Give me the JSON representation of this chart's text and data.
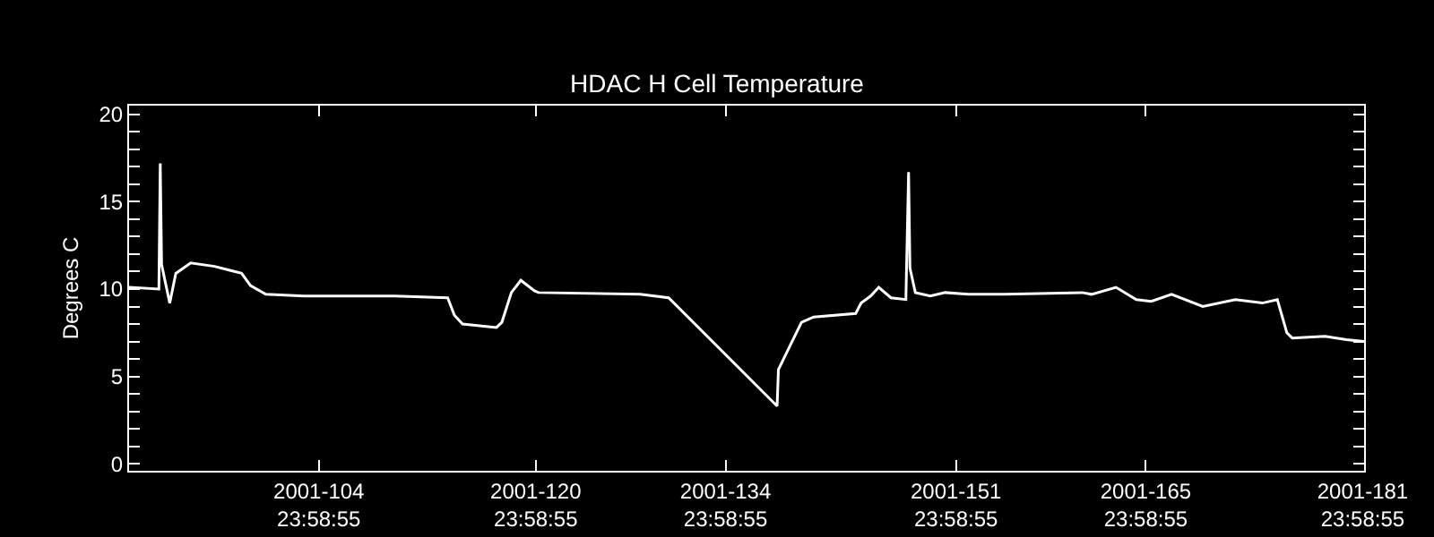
{
  "chart_data": {
    "type": "line",
    "title": "HDAC H Cell Temperature",
    "ylabel": "Degrees C",
    "xlim": [
      "2001-04-01",
      "2001-07-01T02:24"
    ],
    "ylim": [
      -0.4,
      20.5
    ],
    "xticks": [
      {
        "value": "2001-04-14T23:59",
        "label": "2001-104\n23:58:55"
      },
      {
        "value": "2001-04-30T23:59",
        "label": "2001-120\n23:58:55"
      },
      {
        "value": "2001-05-14T23:59",
        "label": "2001-134\n23:58:55"
      },
      {
        "value": "2001-05-31T23:59",
        "label": "2001-151\n23:58:55"
      },
      {
        "value": "2001-06-14T23:59",
        "label": "2001-165\n23:58:55"
      },
      {
        "value": "2001-06-30T23:59",
        "label": "2001-181\n23:58:55"
      }
    ],
    "yticks": [
      0,
      {
        "value": 1,
        "label": null
      },
      {
        "value": 2,
        "label": null
      },
      {
        "value": 3,
        "label": null
      },
      {
        "value": 4,
        "label": null
      },
      5,
      {
        "value": 6,
        "label": null
      },
      {
        "value": 7,
        "label": null
      },
      {
        "value": 8,
        "label": null
      },
      {
        "value": 9,
        "label": null
      },
      10,
      {
        "value": 11,
        "label": null
      },
      {
        "value": 12,
        "label": null
      },
      {
        "value": 13,
        "label": null
      },
      {
        "value": 14,
        "label": null
      },
      15,
      {
        "value": 16,
        "label": null
      },
      {
        "value": 17,
        "label": null
      },
      {
        "value": 18,
        "label": null
      },
      {
        "value": 19,
        "label": null
      },
      20
    ],
    "grid": false,
    "marker": "none",
    "line_style": "solid",
    "series": [
      {
        "color": "#ffffff",
        "x": [
          "2001-04-01T00:00",
          "2001-04-03T04:48",
          "2001-04-03T07:12",
          "2001-04-03T09:36",
          "2001-04-04T00:00",
          "2001-04-04T10:48",
          "2001-04-05T13:12",
          "2001-04-07T07:12",
          "2001-04-09T07:12",
          "2001-04-09T23:00",
          "2001-04-11T02:00",
          "2001-04-13T21:36",
          "2001-04-20T14:24",
          "2001-04-24T12:00",
          "2001-04-25T00:00",
          "2001-04-25T14:24",
          "2001-04-28T02:24",
          "2001-04-28T12:00",
          "2001-04-29T04:48",
          "2001-04-29T21:36",
          "2001-04-30T21:36",
          "2001-05-01T04:48",
          "2001-05-08T16:48",
          "2001-05-10T19:12",
          "2001-05-18T19:12",
          "2001-05-18T21:36",
          "2001-05-20T14:24",
          "2001-05-21T12:00",
          "2001-05-24T14:24",
          "2001-05-25T00:00",
          "2001-05-25T16:48",
          "2001-05-26T07:12",
          "2001-05-27T04:48",
          "2001-05-28T07:12",
          "2001-05-28T12:00",
          "2001-05-28T14:24",
          "2001-05-29T00:00",
          "2001-05-30T02:24",
          "2001-05-31T04:48",
          "2001-06-01T21:36",
          "2001-06-04T14:24",
          "2001-06-10T07:12",
          "2001-06-11T00:00",
          "2001-06-12T19:12",
          "2001-06-14T07:12",
          "2001-06-15T09:36",
          "2001-06-16T21:36",
          "2001-06-19T04:48",
          "2001-06-21T14:24",
          "2001-06-23T14:24",
          "2001-06-24T16:48",
          "2001-06-25T09:36",
          "2001-06-25T19:12",
          "2001-06-28T04:48",
          "2001-06-29T19:12",
          "2001-07-01T02:24"
        ],
        "values": [
          10.1,
          10.0,
          17.2,
          11.4,
          9.2,
          10.9,
          11.5,
          11.3,
          10.9,
          10.2,
          9.7,
          9.6,
          9.6,
          9.5,
          8.5,
          8.0,
          7.8,
          8.1,
          9.8,
          10.5,
          9.9,
          9.8,
          9.7,
          9.5,
          3.3,
          5.4,
          8.1,
          8.4,
          8.6,
          9.2,
          9.6,
          10.1,
          9.5,
          9.4,
          16.7,
          11.2,
          9.8,
          9.6,
          9.8,
          9.7,
          9.7,
          9.8,
          9.7,
          10.1,
          9.4,
          9.3,
          9.7,
          9.0,
          9.4,
          9.2,
          9.4,
          7.5,
          7.2,
          7.3,
          7.1,
          7.0
        ]
      }
    ]
  }
}
